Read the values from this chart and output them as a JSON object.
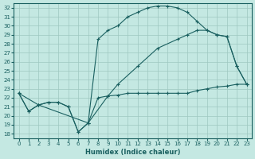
{
  "xlabel": "Humidex (Indice chaleur)",
  "xlim": [
    -0.5,
    23.5
  ],
  "ylim": [
    17.5,
    32.5
  ],
  "xticks": [
    0,
    1,
    2,
    3,
    4,
    5,
    6,
    7,
    8,
    9,
    10,
    11,
    12,
    13,
    14,
    15,
    16,
    17,
    18,
    19,
    20,
    21,
    22,
    23
  ],
  "yticks": [
    18,
    19,
    20,
    21,
    22,
    23,
    24,
    25,
    26,
    27,
    28,
    29,
    30,
    31,
    32
  ],
  "background_color": "#c4e8e2",
  "grid_color": "#9ec8c0",
  "line_color": "#1a6060",
  "line1": {
    "x": [
      0,
      1,
      2,
      3,
      4,
      5,
      6,
      7,
      8,
      9,
      10,
      11,
      12,
      13,
      14,
      15,
      16,
      17,
      18,
      19,
      20,
      21,
      22,
      23
    ],
    "y": [
      22.5,
      20.5,
      21.2,
      21.5,
      21.5,
      21.0,
      18.2,
      19.2,
      22.0,
      22.2,
      22.3,
      22.5,
      22.5,
      22.5,
      22.5,
      22.5,
      22.5,
      22.5,
      22.8,
      23.0,
      23.2,
      23.3,
      23.5,
      23.5
    ]
  },
  "line2": {
    "x": [
      0,
      1,
      2,
      3,
      4,
      5,
      6,
      7,
      8,
      9,
      10,
      11,
      12,
      13,
      14,
      15,
      16,
      17,
      18,
      19,
      20,
      21,
      22,
      23
    ],
    "y": [
      22.5,
      20.5,
      21.2,
      21.5,
      21.5,
      21.0,
      18.2,
      19.2,
      28.5,
      29.5,
      30.0,
      31.0,
      31.5,
      32.0,
      32.2,
      32.2,
      32.0,
      31.5,
      30.5,
      29.5,
      29.0,
      28.8,
      25.5,
      23.5
    ]
  },
  "line3": {
    "x": [
      0,
      2,
      7,
      9,
      10,
      12,
      14,
      16,
      17,
      18,
      19,
      20,
      21,
      22,
      23
    ],
    "y": [
      22.5,
      21.2,
      19.2,
      22.2,
      23.5,
      25.5,
      27.5,
      28.5,
      29.0,
      29.5,
      29.5,
      29.0,
      28.8,
      25.5,
      23.5
    ]
  }
}
